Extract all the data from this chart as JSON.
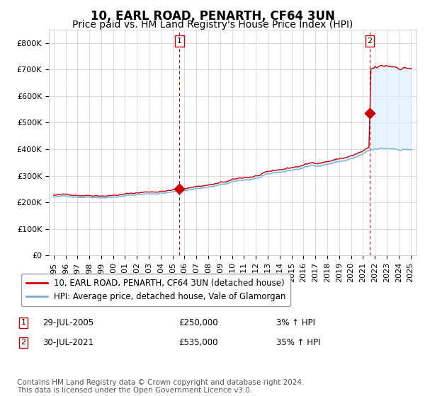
{
  "title": "10, EARL ROAD, PENARTH, CF64 3UN",
  "subtitle": "Price paid vs. HM Land Registry's House Price Index (HPI)",
  "ylim": [
    0,
    850000
  ],
  "yticks": [
    0,
    100000,
    200000,
    300000,
    400000,
    500000,
    600000,
    700000,
    800000
  ],
  "ytick_labels": [
    "£0",
    "£100K",
    "£200K",
    "£300K",
    "£400K",
    "£500K",
    "£600K",
    "£700K",
    "£800K"
  ],
  "line1_color": "#cc0000",
  "line2_color": "#7ab0d4",
  "fill_color": "#ddeeff",
  "marker_color": "#cc0000",
  "vline_color": "#cc0000",
  "legend_label1": "10, EARL ROAD, PENARTH, CF64 3UN (detached house)",
  "legend_label2": "HPI: Average price, detached house, Vale of Glamorgan",
  "transaction1_label": "1",
  "transaction1_date": "29-JUL-2005",
  "transaction1_price": "£250,000",
  "transaction1_hpi": "3% ↑ HPI",
  "transaction1_x": 2005.57,
  "transaction1_y": 250000,
  "transaction2_label": "2",
  "transaction2_date": "30-JUL-2021",
  "transaction2_price": "£535,000",
  "transaction2_hpi": "35% ↑ HPI",
  "transaction2_x": 2021.57,
  "transaction2_y": 535000,
  "footnote": "Contains HM Land Registry data © Crown copyright and database right 2024.\nThis data is licensed under the Open Government Licence v3.0.",
  "background_color": "#ffffff",
  "grid_color": "#cccccc",
  "title_fontsize": 12,
  "subtitle_fontsize": 10,
  "tick_fontsize": 8,
  "legend_fontsize": 8.5,
  "footnote_fontsize": 7.5,
  "xlim_left": 1994.6,
  "xlim_right": 2025.5
}
